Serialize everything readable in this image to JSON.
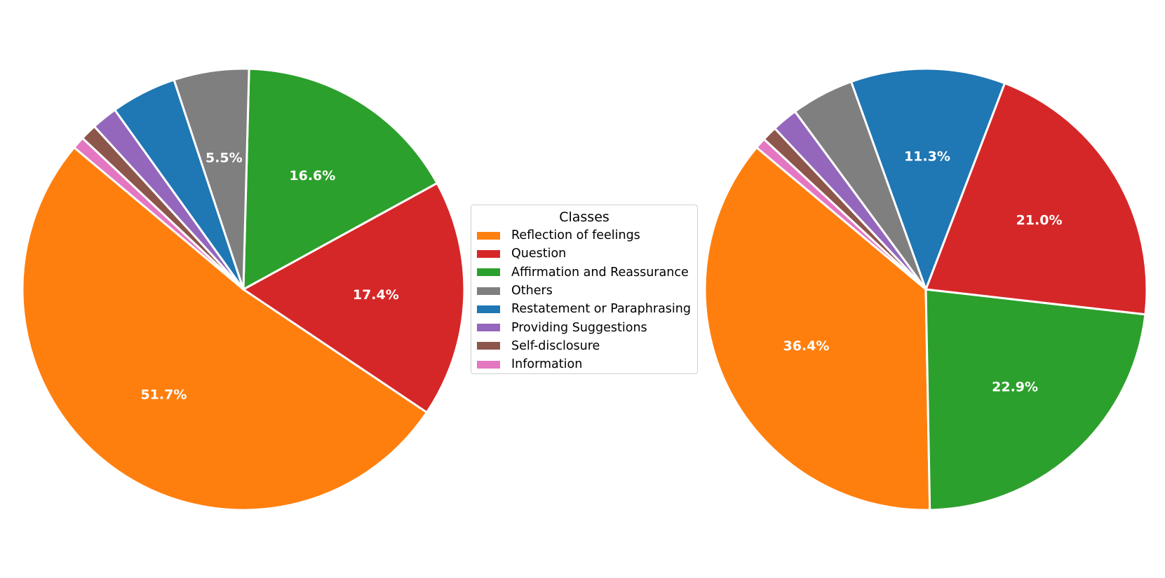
{
  "chart_data": [
    {
      "type": "pie",
      "start_angle_deg": 140,
      "direction": "counterclockwise",
      "slices": [
        {
          "label": "Reflection of feelings",
          "value": 51.7,
          "pct_label": "51.7%",
          "color": "#ff7f0e"
        },
        {
          "label": "Question",
          "value": 17.4,
          "pct_label": "17.4%",
          "color": "#d62728"
        },
        {
          "label": "Affirmation and Reassurance",
          "value": 16.6,
          "pct_label": "16.6%",
          "color": "#2ca02c"
        },
        {
          "label": "Others",
          "value": 5.5,
          "pct_label": "5.5%",
          "color": "#7f7f7f"
        },
        {
          "label": "Restatement or Paraphrasing",
          "value": 4.8,
          "pct_label": "",
          "color": "#1f77b4"
        },
        {
          "label": "Providing Suggestions",
          "value": 1.9,
          "pct_label": "",
          "color": "#9467bd"
        },
        {
          "label": "Self-disclosure",
          "value": 1.2,
          "pct_label": "",
          "color": "#8c564b"
        },
        {
          "label": "Information",
          "value": 0.9,
          "pct_label": "",
          "color": "#e377c2"
        }
      ]
    },
    {
      "type": "pie",
      "start_angle_deg": 140,
      "direction": "counterclockwise",
      "slices": [
        {
          "label": "Reflection of feelings",
          "value": 36.4,
          "pct_label": "36.4%",
          "color": "#ff7f0e"
        },
        {
          "label": "Affirmation and Reassurance",
          "value": 22.9,
          "pct_label": "22.9%",
          "color": "#2ca02c"
        },
        {
          "label": "Question",
          "value": 21.0,
          "pct_label": "21.0%",
          "color": "#d62728"
        },
        {
          "label": "Restatement or Paraphrasing",
          "value": 11.3,
          "pct_label": "11.3%",
          "color": "#1f77b4"
        },
        {
          "label": "Others",
          "value": 4.6,
          "pct_label": "",
          "color": "#7f7f7f"
        },
        {
          "label": "Providing Suggestions",
          "value": 1.9,
          "pct_label": "",
          "color": "#9467bd"
        },
        {
          "label": "Self-disclosure",
          "value": 1.1,
          "pct_label": "",
          "color": "#8c564b"
        },
        {
          "label": "Information",
          "value": 0.8,
          "pct_label": "",
          "color": "#e377c2"
        }
      ]
    }
  ],
  "legend": {
    "title": "Classes",
    "placement": "center",
    "items": [
      {
        "label": "Reflection of feelings",
        "color": "#ff7f0e"
      },
      {
        "label": "Question",
        "color": "#d62728"
      },
      {
        "label": "Affirmation and Reassurance",
        "color": "#2ca02c"
      },
      {
        "label": "Others",
        "color": "#7f7f7f"
      },
      {
        "label": "Restatement or Paraphrasing",
        "color": "#1f77b4"
      },
      {
        "label": "Providing Suggestions",
        "color": "#9467bd"
      },
      {
        "label": "Self-disclosure",
        "color": "#8c564b"
      },
      {
        "label": "Information",
        "color": "#e377c2"
      }
    ]
  }
}
